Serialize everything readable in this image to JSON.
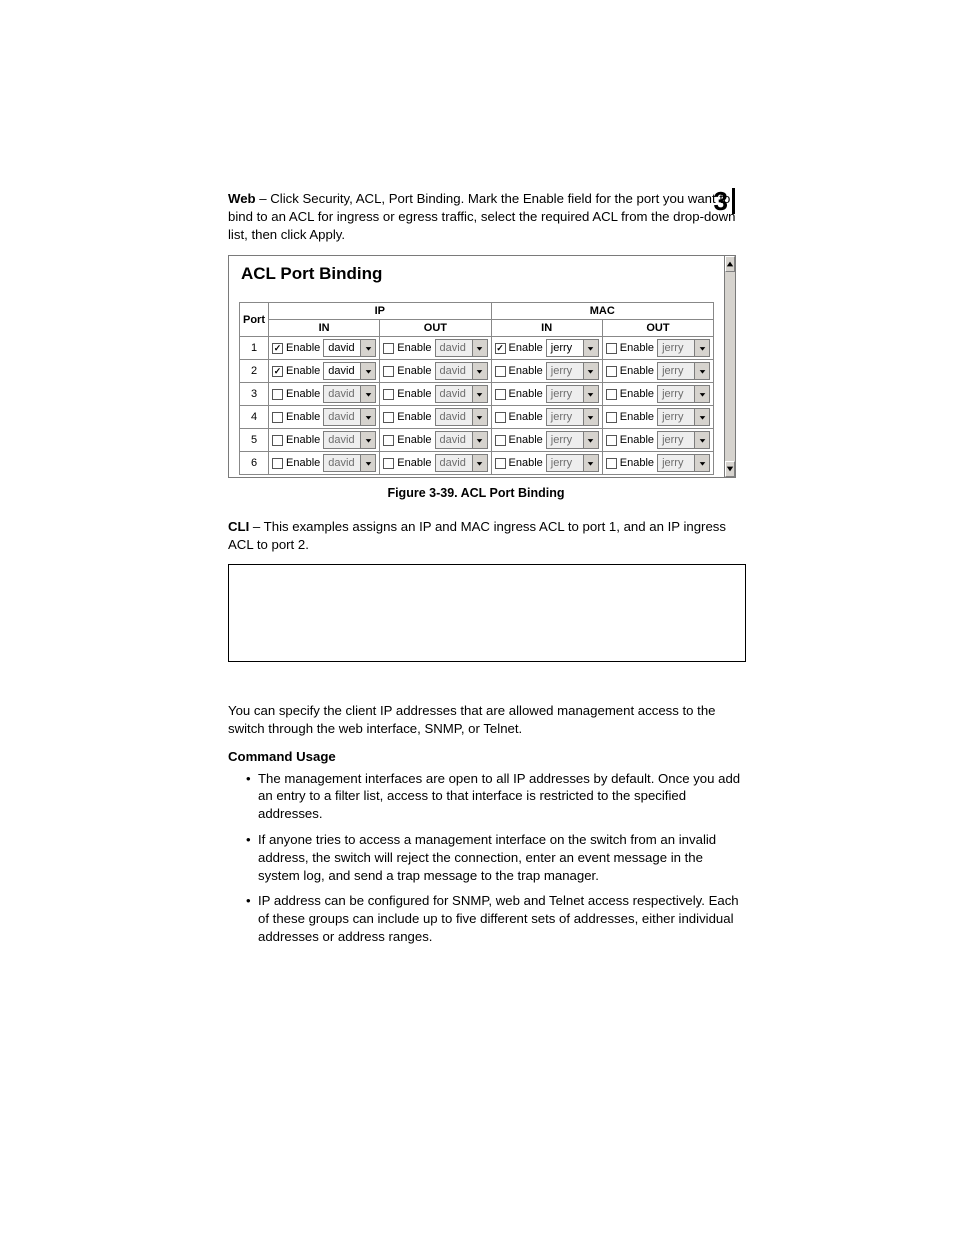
{
  "chapter_number": "3",
  "intro": {
    "web_label": "Web",
    "web_text": " – Click Security, ACL, Port Binding. Mark the Enable field for the port you want to bind to an ACL for ingress or egress traffic, select the required ACL from the drop-down list, then click Apply."
  },
  "screenshot": {
    "title": "ACL Port Binding",
    "headers": {
      "type": "table",
      "port": "Port",
      "ip": "IP",
      "mac": "MAC",
      "in": "IN",
      "out": "OUT"
    },
    "enable_label": "Enable",
    "dropdown_colors": {
      "enabled_bg": "#ffffff",
      "disabled_bg": "#eeeeee",
      "btn_bg": "#d6d3ce",
      "border": "#7d7d7d",
      "text_enabled": "#000000",
      "text_disabled": "#6d6d6d"
    },
    "rows": [
      {
        "port": "1",
        "ip_in": {
          "checked": true,
          "value": "david"
        },
        "ip_out": {
          "checked": false,
          "value": "david"
        },
        "mac_in": {
          "checked": true,
          "value": "jerry"
        },
        "mac_out": {
          "checked": false,
          "value": "jerry"
        }
      },
      {
        "port": "2",
        "ip_in": {
          "checked": true,
          "value": "david"
        },
        "ip_out": {
          "checked": false,
          "value": "david"
        },
        "mac_in": {
          "checked": false,
          "value": "jerry"
        },
        "mac_out": {
          "checked": false,
          "value": "jerry"
        }
      },
      {
        "port": "3",
        "ip_in": {
          "checked": false,
          "value": "david"
        },
        "ip_out": {
          "checked": false,
          "value": "david"
        },
        "mac_in": {
          "checked": false,
          "value": "jerry"
        },
        "mac_out": {
          "checked": false,
          "value": "jerry"
        }
      },
      {
        "port": "4",
        "ip_in": {
          "checked": false,
          "value": "david"
        },
        "ip_out": {
          "checked": false,
          "value": "david"
        },
        "mac_in": {
          "checked": false,
          "value": "jerry"
        },
        "mac_out": {
          "checked": false,
          "value": "jerry"
        }
      },
      {
        "port": "5",
        "ip_in": {
          "checked": false,
          "value": "david"
        },
        "ip_out": {
          "checked": false,
          "value": "david"
        },
        "mac_in": {
          "checked": false,
          "value": "jerry"
        },
        "mac_out": {
          "checked": false,
          "value": "jerry"
        }
      },
      {
        "port": "6",
        "ip_in": {
          "checked": false,
          "value": "david"
        },
        "ip_out": {
          "checked": false,
          "value": "david"
        },
        "mac_in": {
          "checked": false,
          "value": "jerry"
        },
        "mac_out": {
          "checked": false,
          "value": "jerry"
        }
      }
    ]
  },
  "figure_caption": "Figure 3-39.  ACL Port Binding",
  "cli": {
    "label": "CLI",
    "text": " – This examples assigns an IP and MAC ingress ACL to port 1, and an IP ingress ACL to port 2."
  },
  "filtering": {
    "intro": "You can specify the client IP addresses that are allowed management access to the switch through the web interface, SNMP, or Telnet.",
    "usage_heading": "Command Usage",
    "bullets": [
      "The management interfaces are open to all IP addresses by default. Once you add an entry to a filter list, access to that interface is restricted to the specified addresses.",
      "If anyone tries to access a management interface on the switch from an invalid address, the switch will reject the connection, enter an event message in the system log, and send a trap message to the trap manager.",
      "IP address can be configured for SNMP, web and Telnet access respectively. Each of these groups can include up to five different sets of addresses, either individual addresses or address ranges."
    ]
  }
}
